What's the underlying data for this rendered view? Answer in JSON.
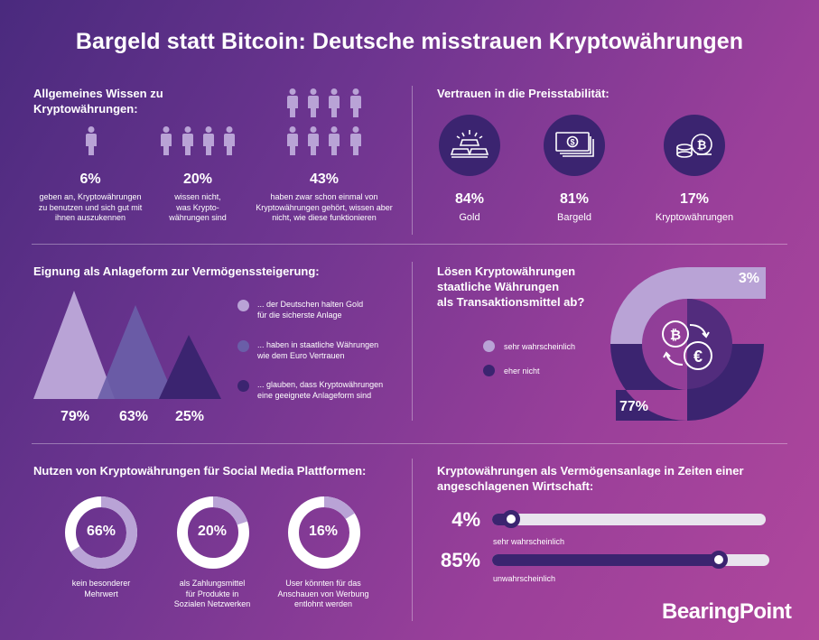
{
  "title": "Bargeld statt Bitcoin: Deutsche misstrauen Kryptowährungen",
  "wissen": {
    "heading_line1": "Allgemeines Wissen zu",
    "heading_line2": "Kryptowährungen:",
    "items": [
      {
        "value": "6%",
        "text1": "geben an, Kryptowährungen",
        "text2": "zu benutzen und sich gut mit",
        "text3": "ihnen auszukennen"
      },
      {
        "value": "20%",
        "text1": "wissen nicht,",
        "text2": "was Krypto-",
        "text3": "währungen sind"
      },
      {
        "value": "43%",
        "text1": "haben zwar schon einmal von",
        "text2": "Kryptowährungen gehört, wissen aber",
        "text3": "nicht, wie diese funktionieren"
      }
    ]
  },
  "vertrauen": {
    "heading": "Vertrauen in die Preisstabilität:",
    "items": [
      {
        "value": "84%",
        "label": "Gold",
        "icon": "gold-bars-icon"
      },
      {
        "value": "81%",
        "label": "Bargeld",
        "icon": "banknotes-icon"
      },
      {
        "value": "17%",
        "label": "Kryptowährungen",
        "icon": "crypto-coins-icon"
      }
    ]
  },
  "eignung": {
    "heading": "Eignung als Anlageform zur Vermögenssteigerung:",
    "values": [
      "79%",
      "63%",
      "25%"
    ],
    "legend": [
      {
        "line1": "... der Deutschen halten Gold",
        "line2": "für die sicherste Anlage",
        "color": "#b9a3d6"
      },
      {
        "line1": "... haben in staatliche Währungen",
        "line2": "wie dem Euro Vertrauen",
        "color": "#6a5ea8"
      },
      {
        "line1": "... glauben, dass Kryptowährungen",
        "line2": "eine geeignete Anlageform sind",
        "color": "#3b2470"
      }
    ]
  },
  "loesen": {
    "heading_line1": "Lösen Kryptowährungen",
    "heading_line2": "staatliche Währungen",
    "heading_line3": "als Transaktionsmittel ab?",
    "legend": [
      {
        "label": "sehr wahrscheinlich",
        "color": "#b9a3d6"
      },
      {
        "label": "eher nicht",
        "color": "#3b2470"
      }
    ],
    "value_light": "3%",
    "value_dark": "77%"
  },
  "social": {
    "heading": "Nutzen von Kryptowährungen für Social Media Plattformen:",
    "items": [
      {
        "value": "66%",
        "fraction": 0.66,
        "text1": "kein besonderer",
        "text2": "Mehrwert",
        "text3": ""
      },
      {
        "value": "20%",
        "fraction": 0.2,
        "text1": "als Zahlungsmittel",
        "text2": "für Produkte in",
        "text3": "Sozialen Netzwerken"
      },
      {
        "value": "16%",
        "fraction": 0.16,
        "text1": "User könnten für das",
        "text2": "Anschauen von Werbung",
        "text3": "entlohnt werden"
      }
    ]
  },
  "anlage": {
    "heading_line1": "Kryptowährungen als Vermögensanlage in Zeiten einer",
    "heading_line2": "angeschlagenen Wirtschaft:",
    "rows": [
      {
        "value": "4%",
        "level": 0.04,
        "label": "sehr wahrscheinlich"
      },
      {
        "value": "85%",
        "level": 0.85,
        "label": "unwahrscheinlich"
      }
    ]
  },
  "brand": "BearingPoint",
  "colors": {
    "dark": "#3b2470",
    "light": "#b9a3d6",
    "mid": "#6a5ea8"
  }
}
